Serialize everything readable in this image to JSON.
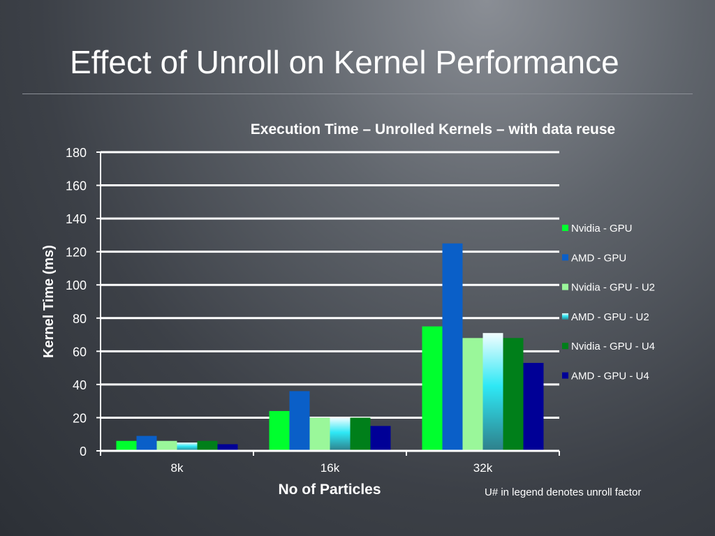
{
  "slide": {
    "title": "Effect of Unroll on Kernel Performance",
    "footnote": "U# in legend denotes unroll factor"
  },
  "colors": {
    "gridline": "#ffffff",
    "axis": "#ffffff"
  },
  "chart_data": {
    "type": "bar",
    "title": "Execution Time – Unrolled  Kernels – with data reuse",
    "xlabel": "No of Particles",
    "ylabel": "Kernel Time (ms)",
    "categories": [
      "8k",
      "16k",
      "32k"
    ],
    "ylim": [
      0,
      180
    ],
    "yticks": [
      0,
      20,
      40,
      60,
      80,
      100,
      120,
      140,
      160,
      180
    ],
    "grid": true,
    "legend_position": "right",
    "series": [
      {
        "name": "Nvidia - GPU",
        "color": "#00ff2e",
        "values": [
          6,
          24,
          75
        ]
      },
      {
        "name": "AMD - GPU",
        "color": "#0a5fc8",
        "values": [
          9,
          36,
          125
        ]
      },
      {
        "name": "Nvidia - GPU - U2",
        "color": "#9af79a",
        "values": [
          6,
          20,
          68
        ]
      },
      {
        "name": "AMD - GPU - U2",
        "color": "#2ee8f5",
        "color_bottom": "#2e7f8a",
        "values": [
          5,
          20,
          71
        ]
      },
      {
        "name": "Nvidia - GPU - U4",
        "color": "#007f1a",
        "values": [
          6,
          20,
          68
        ]
      },
      {
        "name": "AMD - GPU - U4",
        "color": "#000096",
        "values": [
          4,
          15,
          53
        ]
      }
    ]
  }
}
